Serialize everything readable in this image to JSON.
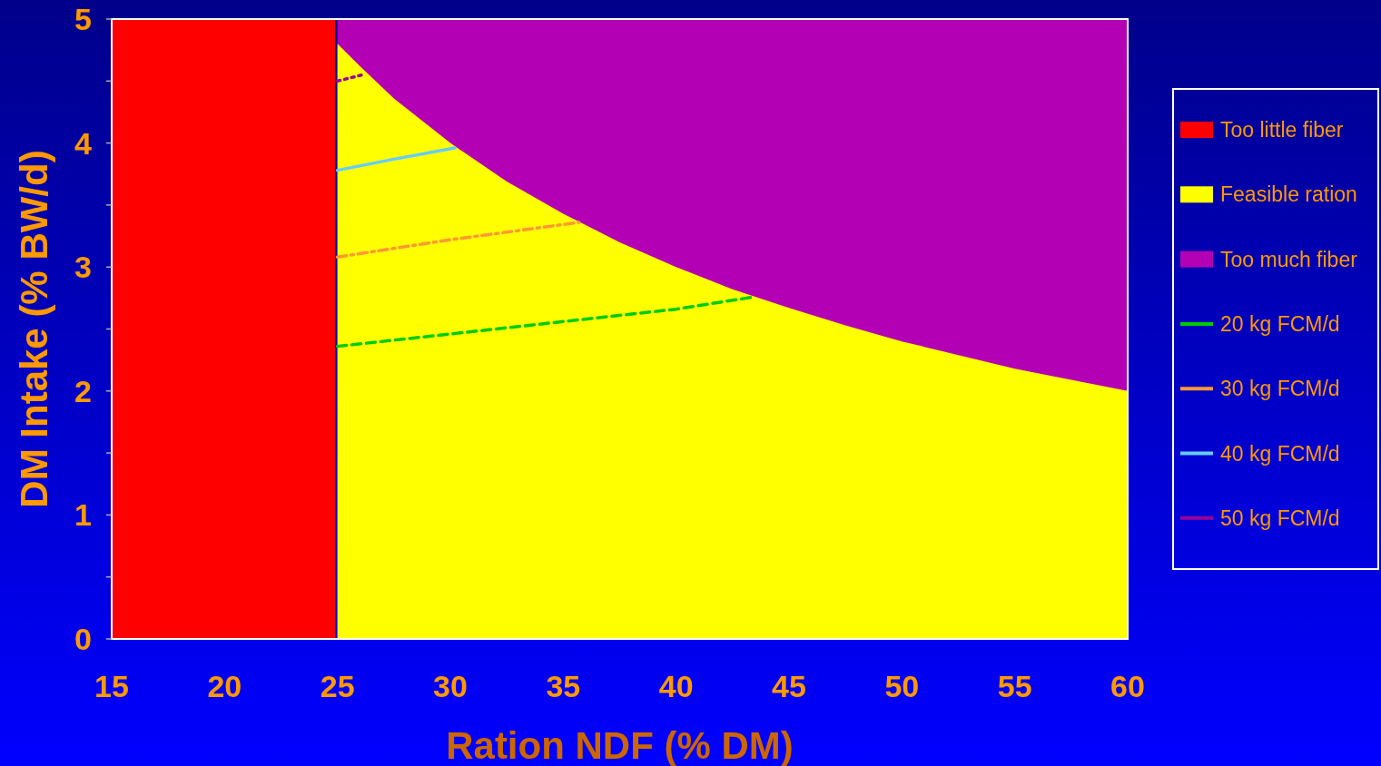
{
  "chart_data": {
    "type": "area",
    "xlabel": "Ration NDF (% DM)",
    "ylabel": "DM Intake (% BW/d)",
    "xlim": [
      15,
      60
    ],
    "ylim": [
      0,
      5
    ],
    "xticks": [
      15,
      20,
      25,
      30,
      35,
      40,
      45,
      50,
      55,
      60
    ],
    "yticks": [
      0,
      {
        "value": 0.5,
        "label": null
      },
      1,
      {
        "value": 1.5,
        "label": null
      },
      2,
      {
        "value": 2.5,
        "label": null
      },
      3,
      {
        "value": 3.5,
        "label": null
      },
      4,
      {
        "value": 4.5,
        "label": null
      },
      5
    ],
    "grid": false,
    "legend": "right",
    "series": [
      {
        "name": "Too little fiber",
        "color": "#ff0000",
        "x": [
          15,
          24.9
        ],
        "values": [
          5,
          5
        ]
      },
      {
        "name": "Feasible ration",
        "color": "#ffff00",
        "x": [
          25,
          26,
          27.5,
          30,
          32.5,
          35,
          37.5,
          40,
          42.5,
          45,
          47.5,
          50,
          52.5,
          55,
          57.5,
          60
        ],
        "values": [
          4.8,
          4.62,
          4.36,
          4.0,
          3.69,
          3.43,
          3.2,
          3.0,
          2.82,
          2.67,
          2.53,
          2.4,
          2.29,
          2.18,
          2.09,
          2.0
        ]
      },
      {
        "name": "Too much fiber",
        "color": "#b400b4",
        "x": [
          25,
          60
        ],
        "values": [
          5,
          5
        ]
      },
      {
        "name": "20 kg FCM/d",
        "type": "line",
        "color": "#00cc00",
        "line_style": "dashed",
        "x": [
          25,
          30,
          35,
          40,
          43.5
        ],
        "values": [
          2.36,
          2.46,
          2.56,
          2.66,
          2.76
        ]
      },
      {
        "name": "30 kg FCM/d",
        "type": "line",
        "color": "#ff9933",
        "line_style": "dashdot",
        "x": [
          25,
          30,
          35.7
        ],
        "values": [
          3.08,
          3.22,
          3.36
        ]
      },
      {
        "name": "40 kg FCM/d",
        "type": "line",
        "color": "#66ccff",
        "line_style": "solid",
        "x": [
          25,
          27.5,
          30.2
        ],
        "values": [
          3.78,
          3.87,
          3.96
        ]
      },
      {
        "name": "50 kg FCM/d",
        "type": "line",
        "color": "#990099",
        "line_style": "dotted",
        "x": [
          25,
          26.1
        ],
        "values": [
          4.5,
          4.55
        ]
      }
    ]
  }
}
